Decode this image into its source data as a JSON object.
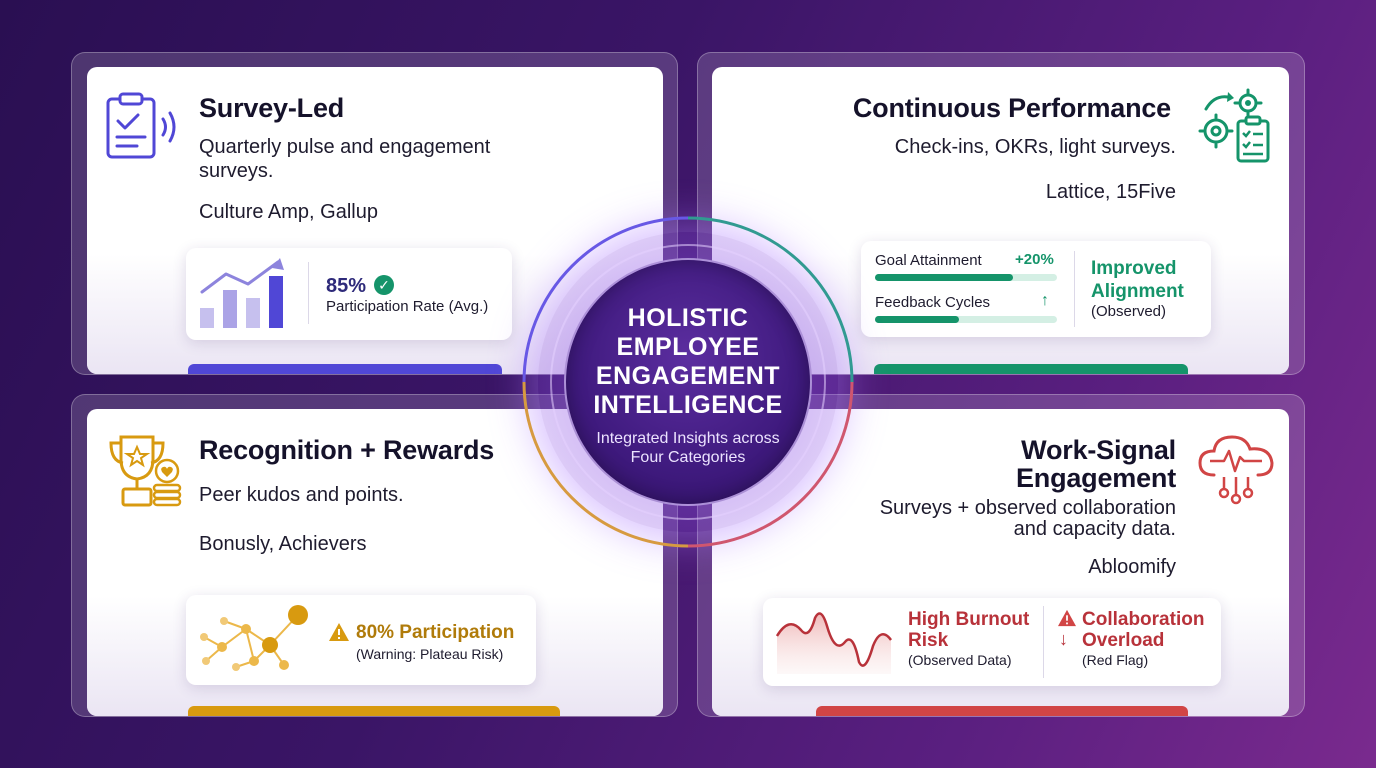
{
  "hub": {
    "title_lines": [
      "HOLISTIC",
      "EMPLOYEE",
      "ENGAGEMENT",
      "INTELLIGENCE"
    ],
    "subtitle_lines": [
      "Integrated Insights across",
      "Four Categories"
    ]
  },
  "cards": {
    "survey": {
      "title": "Survey-Led",
      "desc_lines": [
        "Quarterly pulse and engagement",
        "surveys."
      ],
      "vendors": "Culture Amp, Gallup",
      "metric_value": "85%",
      "metric_label": "Participation Rate (Avg.)",
      "accent_color": "#5047d6",
      "icon": "clipboard-check-icon"
    },
    "performance": {
      "title": "Continuous Performance",
      "desc": "Check-ins, OKRs, light surveys.",
      "vendors": "Lattice, 15Five",
      "goal_label": "Goal Attainment",
      "goal_delta": "+20%",
      "goal_progress": 0.76,
      "feedback_label": "Feedback Cycles",
      "feedback_arrow": "↑",
      "feedback_progress": 0.46,
      "outcome_lines": [
        "Improved",
        "Alignment"
      ],
      "outcome_note": "(Observed)",
      "accent_color": "#15946a",
      "icon": "gears-clipboard-icon"
    },
    "recognition": {
      "title": "Recognition + Rewards",
      "desc": "Peer kudos and points.",
      "vendors": "Bonusly, Achievers",
      "metric_value": "80% Participation",
      "metric_note": "(Warning: Plateau Risk)",
      "accent_color": "#d89a10",
      "icon": "trophy-coins-icon"
    },
    "worksignal": {
      "title_lines": [
        "Work-Signal",
        "Engagement"
      ],
      "desc_lines": [
        "Surveys + observed collaboration",
        "and capacity data."
      ],
      "vendors": "Abloomify",
      "risk_lines": [
        "High Burnout",
        "Risk"
      ],
      "risk_note": "(Observed Data)",
      "collab_lines": [
        "Collaboration",
        "Overload"
      ],
      "collab_note": "(Red Flag)",
      "accent_color": "#d14545",
      "icon": "cloud-pulse-icon"
    }
  }
}
